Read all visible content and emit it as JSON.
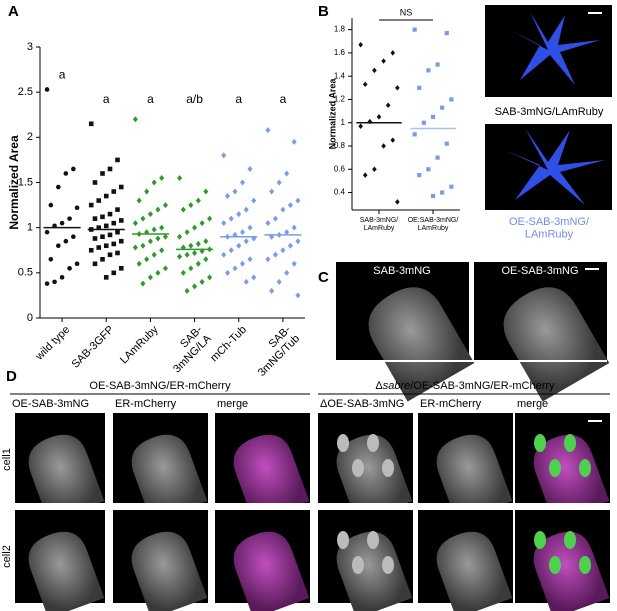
{
  "panel_labels": [
    "A",
    "B",
    "C",
    "D"
  ],
  "chart_data": [
    {
      "type": "strip",
      "ylabel": "Normalized Area",
      "ylim": [
        0,
        3
      ],
      "yticks": [
        0,
        0.5,
        1,
        1.5,
        2,
        2.5,
        3
      ],
      "categories": [
        "wild type",
        "SAB-3GFP",
        "LAmRuby",
        "SAB-\n3mNG/LA",
        "mCh-Tub",
        "SAB-\n3mNG/Tub"
      ],
      "colors": [
        "#111111",
        "#111111",
        "#2e9a2e",
        "#2e9a2e",
        "#7a9be8",
        "#7a9be8"
      ],
      "markers": [
        "circle",
        "square",
        "diamond",
        "diamond",
        "diamond",
        "diamond"
      ],
      "annotations": [
        "a",
        "a",
        "a",
        "a/b",
        "a",
        "a"
      ],
      "medians": [
        1.0,
        0.98,
        0.93,
        0.76,
        0.9,
        0.92
      ],
      "values": [
        [
          2.53,
          1.65,
          1.6,
          1.45,
          1.25,
          1.22,
          1.1,
          1.05,
          1.02,
          0.95,
          0.9,
          0.85,
          0.8,
          0.65,
          0.6,
          0.55,
          0.45,
          0.4,
          0.38
        ],
        [
          2.15,
          1.75,
          1.65,
          1.6,
          1.5,
          1.45,
          1.4,
          1.35,
          1.3,
          1.25,
          1.2,
          1.15,
          1.12,
          1.1,
          1.08,
          1.05,
          1.02,
          1.0,
          0.98,
          0.95,
          0.92,
          0.9,
          0.88,
          0.85,
          0.82,
          0.8,
          0.78,
          0.75,
          0.72,
          0.7,
          0.65,
          0.6,
          0.55,
          0.5,
          0.45
        ],
        [
          2.2,
          1.55,
          1.5,
          1.4,
          1.3,
          1.25,
          1.2,
          1.15,
          1.1,
          1.05,
          1.0,
          0.98,
          0.95,
          0.93,
          0.9,
          0.88,
          0.85,
          0.8,
          0.78,
          0.75,
          0.7,
          0.65,
          0.6,
          0.55,
          0.5,
          0.45,
          0.38
        ],
        [
          1.55,
          1.4,
          1.3,
          1.25,
          1.2,
          1.1,
          1.05,
          1.0,
          0.95,
          0.9,
          0.85,
          0.82,
          0.8,
          0.78,
          0.76,
          0.74,
          0.72,
          0.7,
          0.68,
          0.65,
          0.6,
          0.55,
          0.5,
          0.45,
          0.4,
          0.35,
          0.3
        ],
        [
          1.8,
          1.65,
          1.5,
          1.4,
          1.35,
          1.3,
          1.2,
          1.15,
          1.1,
          1.05,
          1.0,
          0.95,
          0.92,
          0.9,
          0.88,
          0.85,
          0.8,
          0.75,
          0.7,
          0.65,
          0.6,
          0.55,
          0.5,
          0.45,
          0.4
        ],
        [
          2.08,
          1.95,
          1.6,
          1.5,
          1.4,
          1.3,
          1.25,
          1.2,
          1.1,
          1.05,
          1.0,
          0.95,
          0.92,
          0.9,
          0.85,
          0.8,
          0.75,
          0.7,
          0.65,
          0.6,
          0.5,
          0.4,
          0.3,
          0.25
        ]
      ]
    },
    {
      "type": "strip",
      "ylabel": "Normalized Area",
      "ylim": [
        0.25,
        1.9
      ],
      "yticks": [
        0.4,
        0.6,
        0.8,
        1,
        1.2,
        1.4,
        1.6,
        1.8
      ],
      "categories": [
        "SAB-3mNG/\nLAmRuby",
        "OE:SAB-3mNG/\nLAmRuby"
      ],
      "colors": [
        "#111111",
        "#7a9be8"
      ],
      "markers": [
        "diamond",
        "square"
      ],
      "medians": [
        1.0,
        0.95
      ],
      "median_colors": [
        "#111111",
        "#a9c0f2"
      ],
      "bracket": "NS",
      "values": [
        [
          1.67,
          1.6,
          1.53,
          1.45,
          1.33,
          1.3,
          1.15,
          1.05,
          1.01,
          0.97,
          0.85,
          0.8,
          0.6,
          0.55,
          0.32
        ],
        [
          1.8,
          1.77,
          1.5,
          1.45,
          1.3,
          1.2,
          1.13,
          1.05,
          1.0,
          0.9,
          0.82,
          0.7,
          0.6,
          0.55,
          0.45,
          0.4,
          0.37
        ]
      ]
    }
  ],
  "panel_b_images": [
    "SAB-3mNG/LAmRuby",
    "OE-SAB-3mNG/\nLAmRuby"
  ],
  "panel_c_images": [
    "SAB-3mNG",
    "OE-SAB-3mNG"
  ],
  "panel_d": {
    "groups": [
      "OE-SAB-3mNG/ER-mCherry",
      [
        "Δ",
        "sabre",
        "/OE-SAB-3mNG/ER-mCherry"
      ]
    ],
    "columns": [
      "OE-SAB-3mNG",
      "ER-mCherry",
      "merge",
      "ΔOE-SAB-3mNG",
      "ER-mCherry",
      "merge"
    ],
    "rows": [
      "cell1",
      "cell2"
    ]
  }
}
